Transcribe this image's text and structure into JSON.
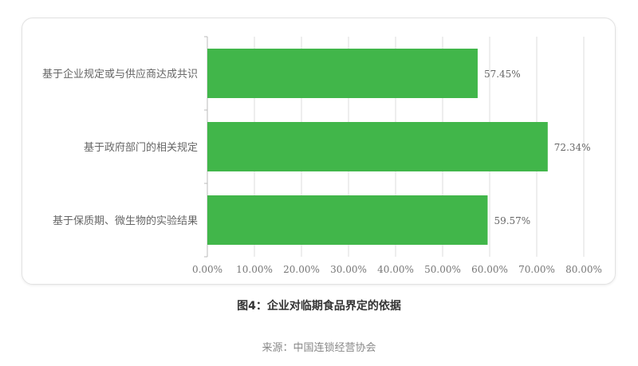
{
  "chart_data": {
    "type": "bar",
    "orientation": "horizontal",
    "categories": [
      "基于企业规定或与供应商达成共识",
      "基于政府部门的相关规定",
      "基于保质期、微生物的实验结果"
    ],
    "values": [
      57.45,
      72.34,
      59.57
    ],
    "data_labels": [
      "57.45%",
      "72.34%",
      "59.57%"
    ],
    "xlim": [
      0,
      80
    ],
    "x_ticks": [
      0,
      10,
      20,
      30,
      40,
      50,
      60,
      70,
      80
    ],
    "x_tick_labels": [
      "0.00%",
      "10.00%",
      "20.00%",
      "30.00%",
      "40.00%",
      "50.00%",
      "60.00%",
      "70.00%",
      "80.00%"
    ],
    "grid": true,
    "bar_color": "#41b64a",
    "title": "图4：企业对临期食品界定的依据",
    "source": "来源：中国连锁经营协会"
  }
}
